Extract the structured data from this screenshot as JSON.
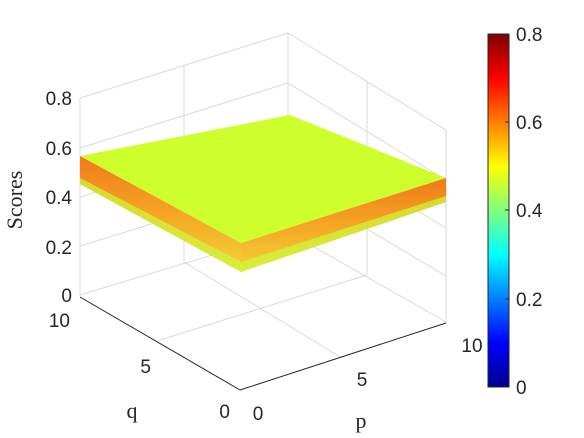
{
  "chart_data": {
    "type": "surface",
    "zlabel": "Scores",
    "xlabel": "p",
    "ylabel": "q",
    "xlim": [
      0,
      10
    ],
    "ylim": [
      0,
      10
    ],
    "zlim": [
      0,
      0.8
    ],
    "x_ticks": [
      "0",
      "5",
      "10"
    ],
    "y_ticks": [
      "0",
      "5",
      "10"
    ],
    "z_ticks": [
      "0",
      "0.2",
      "0.4",
      "0.6",
      "0.8"
    ],
    "surface": {
      "score_at_top_surface": 0.53,
      "score_range_of_edges": [
        0.45,
        0.57
      ]
    },
    "colorbar": {
      "colormap": "jet",
      "limits": [
        0,
        0.8
      ],
      "ticks": [
        "0",
        "0.2",
        "0.4",
        "0.6",
        "0.8"
      ]
    },
    "grid": true
  }
}
